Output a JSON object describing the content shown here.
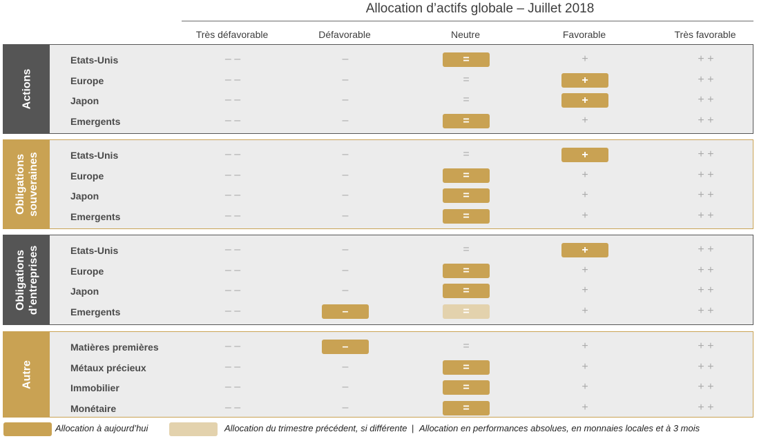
{
  "title": "Allocation d’actifs globale – Juillet 2018",
  "columns": [
    "Très défavorable",
    "Défavorable",
    "Neutre",
    "Favorable",
    "Très favorable"
  ],
  "scale_marks": [
    "– –",
    "–",
    "=",
    "+",
    "+ +"
  ],
  "colors": {
    "accent": "#c9a253",
    "accent_light": "#e3d2ad",
    "dark": "#555555",
    "panel": "#ececec"
  },
  "sections": [
    {
      "label_lines": [
        "Actions"
      ],
      "rows": [
        {
          "label": "Etats-Unis",
          "current": 2,
          "previous": null
        },
        {
          "label": "Europe",
          "current": 3,
          "previous": null
        },
        {
          "label": "Japon",
          "current": 3,
          "previous": null
        },
        {
          "label": "Emergents",
          "current": 2,
          "previous": null
        }
      ]
    },
    {
      "label_lines": [
        "Obligations",
        "souveraines"
      ],
      "rows": [
        {
          "label": "Etats-Unis",
          "current": 3,
          "previous": null
        },
        {
          "label": "Europe",
          "current": 2,
          "previous": null
        },
        {
          "label": "Japon",
          "current": 2,
          "previous": null
        },
        {
          "label": "Emergents",
          "current": 2,
          "previous": null
        }
      ]
    },
    {
      "label_lines": [
        "Obligations",
        "d’entreprises"
      ],
      "rows": [
        {
          "label": "Etats-Unis",
          "current": 3,
          "previous": null
        },
        {
          "label": "Europe",
          "current": 2,
          "previous": null
        },
        {
          "label": "Japon",
          "current": 2,
          "previous": null
        },
        {
          "label": "Emergents",
          "current": 1,
          "previous": 2
        }
      ]
    },
    {
      "label_lines": [
        "Autre"
      ],
      "rows": [
        {
          "label": "Matières premières",
          "current": 1,
          "previous": null
        },
        {
          "label": "Métaux précieux",
          "current": 2,
          "previous": null
        },
        {
          "label": "Immobilier",
          "current": 2,
          "previous": null
        },
        {
          "label": "Monétaire",
          "current": 2,
          "previous": null
        }
      ]
    }
  ],
  "legend": {
    "current": "Allocation à aujourd’hui",
    "previous": "Allocation du trimestre précédent, si différente",
    "note": "Allocation en performances absolues, en monnaies locales et à 3 mois"
  }
}
